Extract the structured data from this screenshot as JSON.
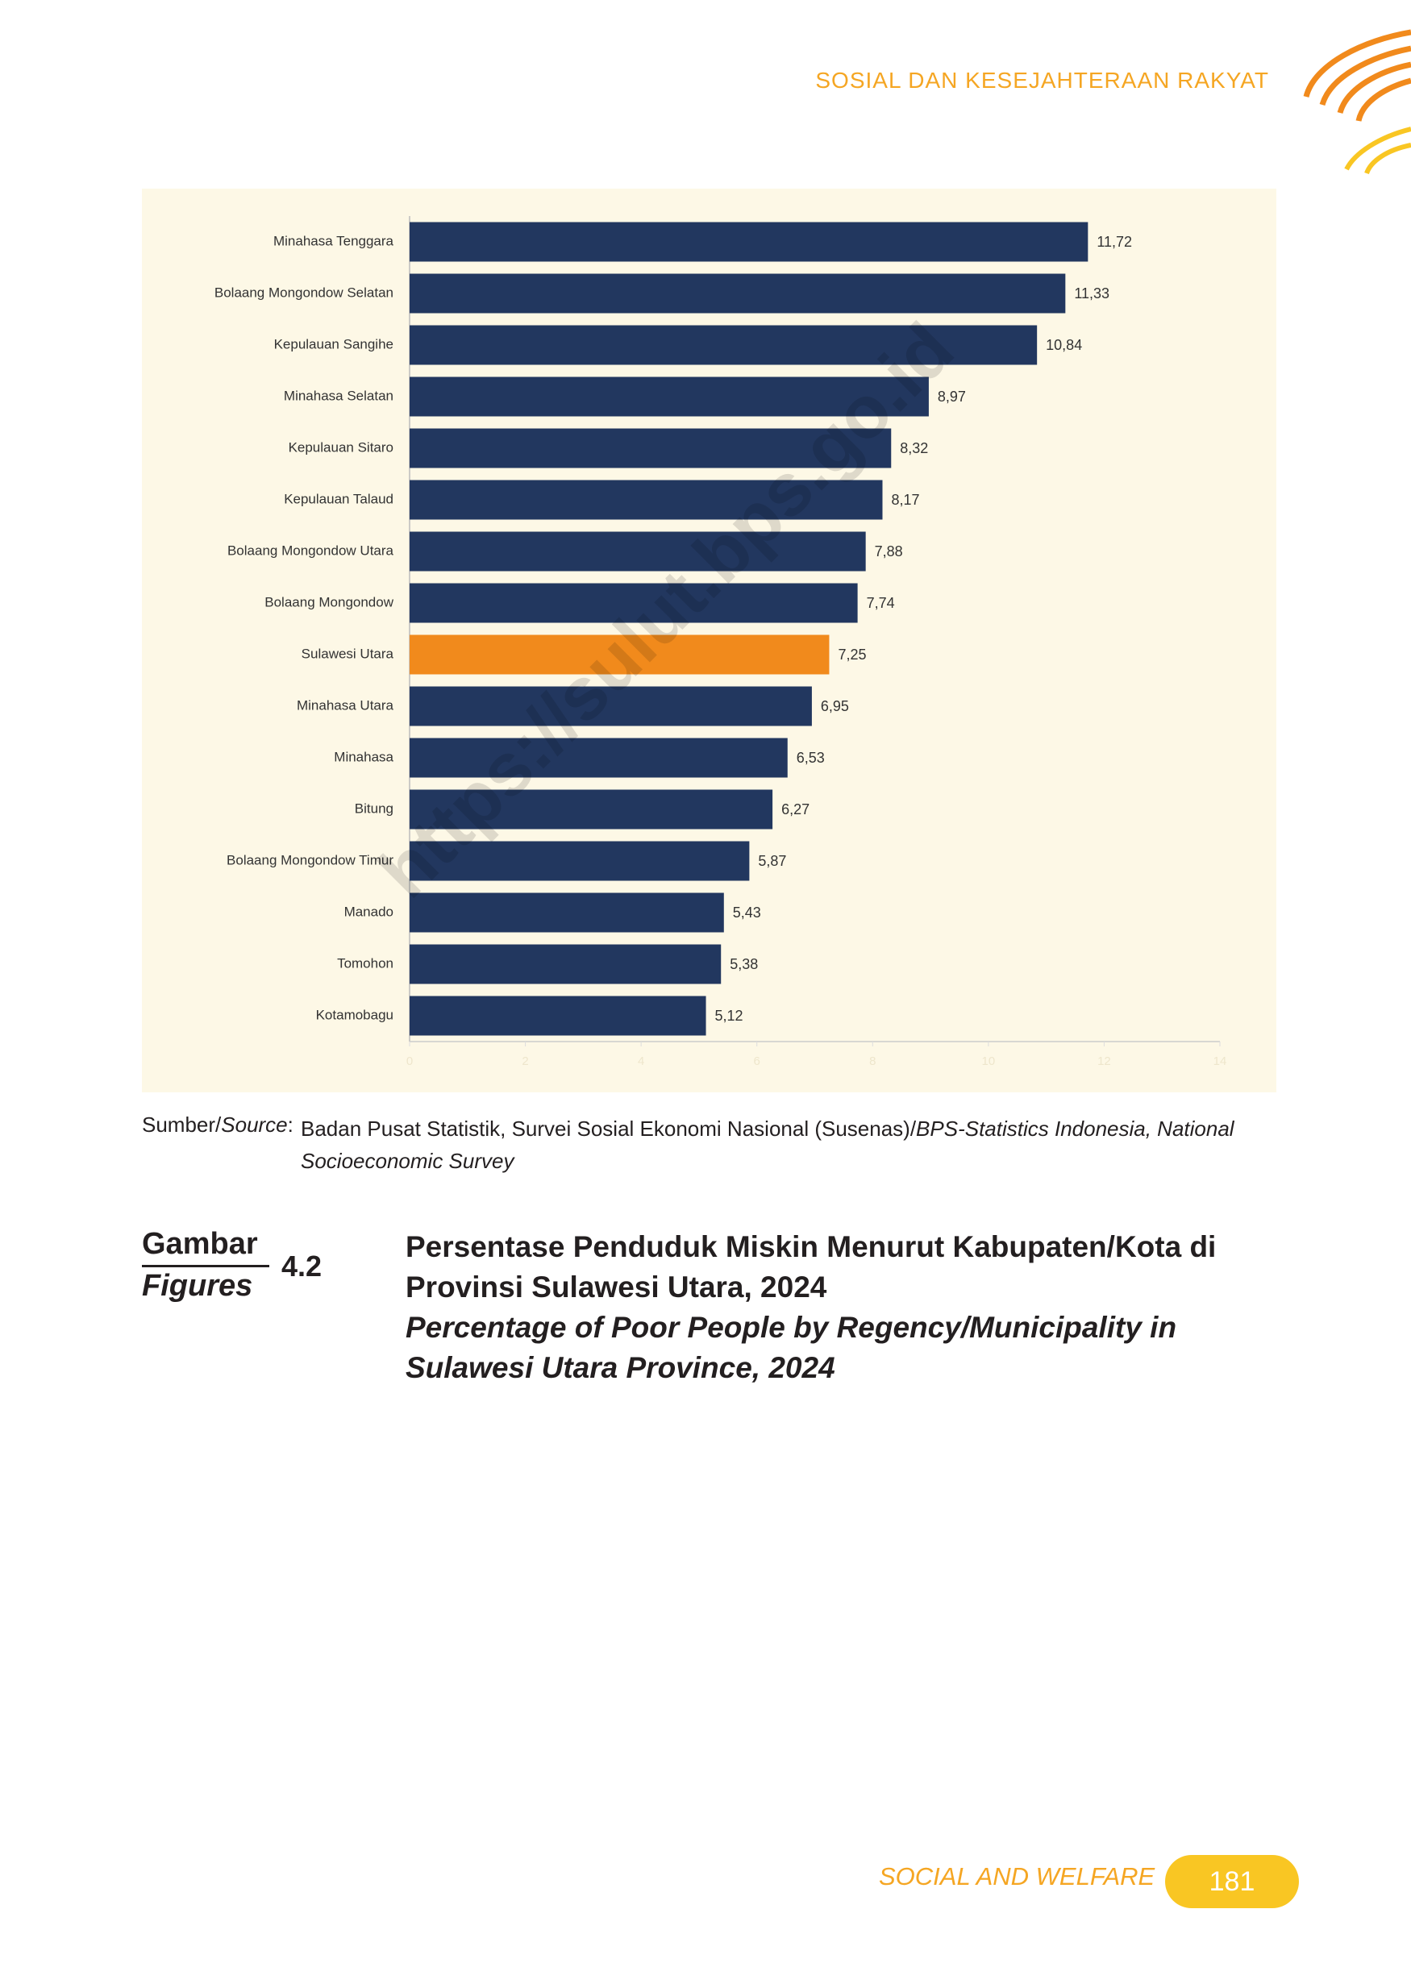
{
  "header": {
    "section": "SOSIAL DAN KESEJAHTERAAN RAKYAT"
  },
  "chart_data": {
    "type": "bar",
    "orientation": "horizontal",
    "categories": [
      "Minahasa Tenggara",
      "Bolaang Mongondow Selatan",
      "Kepulauan Sangihe",
      "Minahasa Selatan",
      "Kepulauan Sitaro",
      "Kepulauan Talaud",
      "Bolaang Mongondow Utara",
      "Bolaang Mongondow",
      "Sulawesi Utara",
      "Minahasa Utara",
      "Minahasa",
      "Bitung",
      "Bolaang Mongondow Timur",
      "Manado",
      "Tomohon",
      "Kotamobagu"
    ],
    "values": [
      11.72,
      11.33,
      10.84,
      8.97,
      8.32,
      8.17,
      7.88,
      7.74,
      7.25,
      6.95,
      6.53,
      6.27,
      5.87,
      5.43,
      5.38,
      5.12
    ],
    "value_labels": [
      "11,72",
      "11,33",
      "10,84",
      "8,97",
      "8,32",
      "8,17",
      "7,88",
      "7,74",
      "7,25",
      "6,95",
      "6,53",
      "6,27",
      "5,87",
      "5,43",
      "5,38",
      "5,12"
    ],
    "bar_colors": [
      "#22375f",
      "#22375f",
      "#22375f",
      "#22375f",
      "#22375f",
      "#22375f",
      "#22375f",
      "#22375f",
      "#f18a1c",
      "#22375f",
      "#22375f",
      "#22375f",
      "#22375f",
      "#22375f",
      "#22375f",
      "#22375f"
    ],
    "xlim": [
      0,
      14
    ],
    "xticks": [
      0,
      2,
      4,
      6,
      8,
      10,
      12,
      14
    ],
    "grid": false
  },
  "watermark": "https://sulut.bps.go.id",
  "source": {
    "label": "Sumber/",
    "label_italic": "Source",
    "colon": ":",
    "text": "Badan Pusat Statistik, Survei Sosial Ekonomi Nasional (Susenas)/",
    "text_italic": "BPS-Statistics Indonesia, National Socioeconomic Survey"
  },
  "figure": {
    "label": "Gambar",
    "label_en": "Figures",
    "number": "4.2",
    "title": "Persentase Penduduk Miskin Menurut Kabupaten/Kota di Provinsi Sulawesi Utara, 2024",
    "title_en": "Percentage of Poor People by Regency/Municipality in Sulawesi Utara Province, 2024"
  },
  "footer": {
    "section": "SOCIAL AND WELFARE",
    "page": "181"
  }
}
